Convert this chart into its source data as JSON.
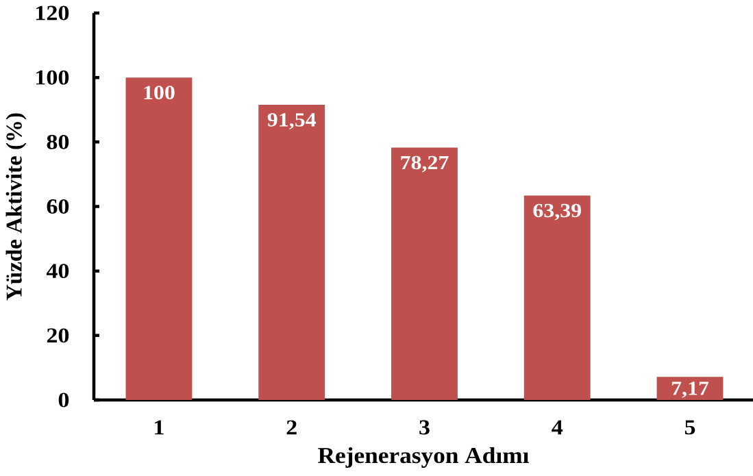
{
  "chart_data": {
    "type": "bar",
    "xlabel": "Rejenerasyon Adımı",
    "ylabel": "Yüzde Aktivite (%)",
    "categories": [
      "1",
      "2",
      "3",
      "4",
      "5"
    ],
    "values": [
      100,
      91.54,
      78.27,
      63.39,
      7.17
    ],
    "value_labels": [
      "100",
      "91,54",
      "78,27",
      "63,39",
      "7,17"
    ],
    "color": "#c0504d",
    "ylim": [
      0,
      120
    ],
    "yticks": [
      0,
      20,
      40,
      60,
      80,
      100,
      120
    ]
  }
}
